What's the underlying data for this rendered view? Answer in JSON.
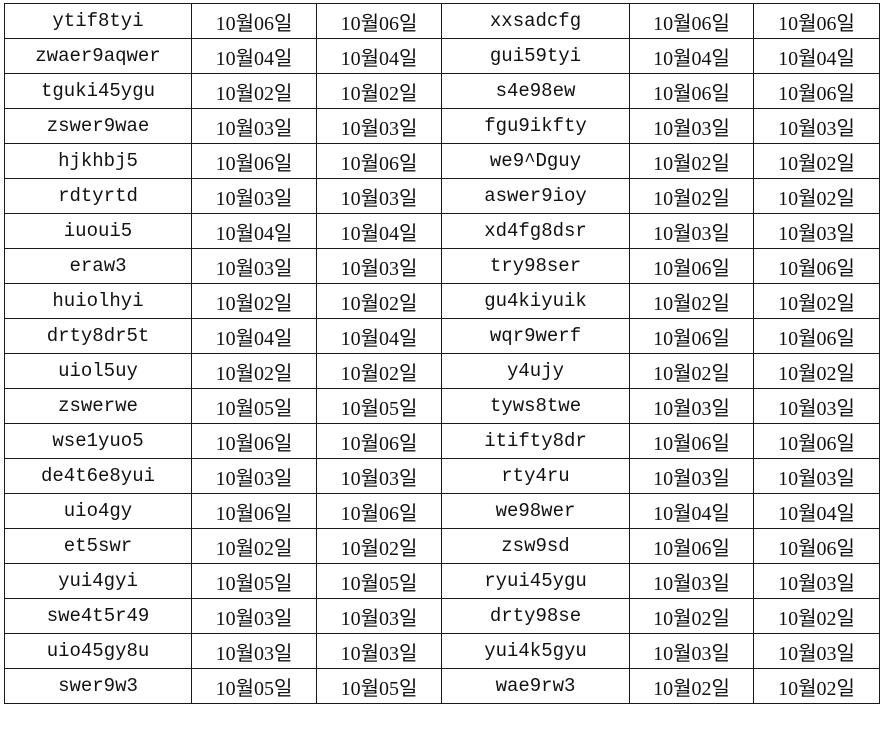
{
  "rows": [
    {
      "code_a": "ytif8tyi",
      "date_a1": "10월06일",
      "date_a2": "10월06일",
      "code_b": "xxsadcfg",
      "date_b1": "10월06일",
      "date_b2": "10월06일"
    },
    {
      "code_a": "zwaer9aqwer",
      "date_a1": "10월04일",
      "date_a2": "10월04일",
      "code_b": "gui59tyi",
      "date_b1": "10월04일",
      "date_b2": "10월04일"
    },
    {
      "code_a": "tguki45ygu",
      "date_a1": "10월02일",
      "date_a2": "10월02일",
      "code_b": "s4e98ew",
      "date_b1": "10월06일",
      "date_b2": "10월06일"
    },
    {
      "code_a": "zswer9wae",
      "date_a1": "10월03일",
      "date_a2": "10월03일",
      "code_b": "fgu9ikfty",
      "date_b1": "10월03일",
      "date_b2": "10월03일"
    },
    {
      "code_a": "hjkhbj5",
      "date_a1": "10월06일",
      "date_a2": "10월06일",
      "code_b": "we9^Dguy",
      "date_b1": "10월02일",
      "date_b2": "10월02일"
    },
    {
      "code_a": "rdtyrtd",
      "date_a1": "10월03일",
      "date_a2": "10월03일",
      "code_b": "aswer9ioy",
      "date_b1": "10월02일",
      "date_b2": "10월02일"
    },
    {
      "code_a": "iuoui5",
      "date_a1": "10월04일",
      "date_a2": "10월04일",
      "code_b": "xd4fg8dsr",
      "date_b1": "10월03일",
      "date_b2": "10월03일"
    },
    {
      "code_a": "eraw3",
      "date_a1": "10월03일",
      "date_a2": "10월03일",
      "code_b": "try98ser",
      "date_b1": "10월06일",
      "date_b2": "10월06일"
    },
    {
      "code_a": "huiolhyi",
      "date_a1": "10월02일",
      "date_a2": "10월02일",
      "code_b": "gu4kiyuik",
      "date_b1": "10월02일",
      "date_b2": "10월02일"
    },
    {
      "code_a": "drty8dr5t",
      "date_a1": "10월04일",
      "date_a2": "10월04일",
      "code_b": "wqr9werf",
      "date_b1": "10월06일",
      "date_b2": "10월06일"
    },
    {
      "code_a": "uiol5uy",
      "date_a1": "10월02일",
      "date_a2": "10월02일",
      "code_b": "y4ujy",
      "date_b1": "10월02일",
      "date_b2": "10월02일"
    },
    {
      "code_a": "zswerwe",
      "date_a1": "10월05일",
      "date_a2": "10월05일",
      "code_b": "tyws8twe",
      "date_b1": "10월03일",
      "date_b2": "10월03일"
    },
    {
      "code_a": "wse1yuo5",
      "date_a1": "10월06일",
      "date_a2": "10월06일",
      "code_b": "itifty8dr",
      "date_b1": "10월06일",
      "date_b2": "10월06일"
    },
    {
      "code_a": "de4t6e8yui",
      "date_a1": "10월03일",
      "date_a2": "10월03일",
      "code_b": "rty4ru",
      "date_b1": "10월03일",
      "date_b2": "10월03일"
    },
    {
      "code_a": "uio4gy",
      "date_a1": "10월06일",
      "date_a2": "10월06일",
      "code_b": "we98wer",
      "date_b1": "10월04일",
      "date_b2": "10월04일"
    },
    {
      "code_a": "et5swr",
      "date_a1": "10월02일",
      "date_a2": "10월02일",
      "code_b": "zsw9sd",
      "date_b1": "10월06일",
      "date_b2": "10월06일"
    },
    {
      "code_a": "yui4gyi",
      "date_a1": "10월05일",
      "date_a2": "10월05일",
      "code_b": "ryui45ygu",
      "date_b1": "10월03일",
      "date_b2": "10월03일"
    },
    {
      "code_a": "swe4t5r49",
      "date_a1": "10월03일",
      "date_a2": "10월03일",
      "code_b": "drty98se",
      "date_b1": "10월02일",
      "date_b2": "10월02일"
    },
    {
      "code_a": "uio45gy8u",
      "date_a1": "10월03일",
      "date_a2": "10월03일",
      "code_b": "yui4k5gyu",
      "date_b1": "10월03일",
      "date_b2": "10월03일"
    },
    {
      "code_a": "swer9w3",
      "date_a1": "10월05일",
      "date_a2": "10월05일",
      "code_b": "wae9rw3",
      "date_b1": "10월02일",
      "date_b2": "10월02일"
    }
  ]
}
